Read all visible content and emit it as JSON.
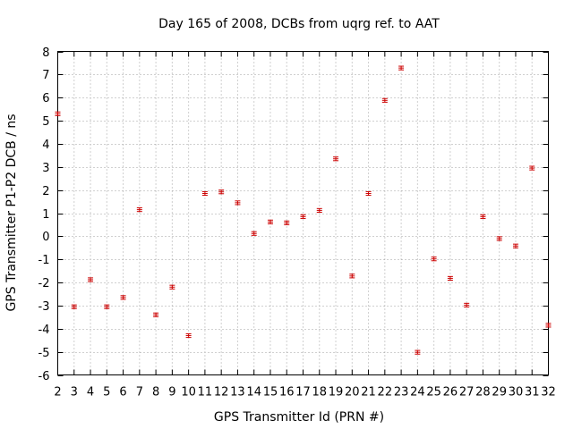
{
  "chart_data": {
    "type": "scatter",
    "title": "Day 165 of 2008, DCBs from uqrg ref. to AAT",
    "xlabel": "GPS Transmitter Id (PRN #)",
    "ylabel": "GPS Transmitter P1-P2 DCB / ns",
    "xlim": [
      2,
      32
    ],
    "ylim": [
      -6,
      8
    ],
    "grid": true,
    "y_ticks": [
      -6,
      -5,
      -4,
      -3,
      -2,
      -1,
      0,
      1,
      2,
      3,
      4,
      5,
      6,
      7,
      8
    ],
    "x_ticks": [
      2,
      3,
      4,
      5,
      6,
      7,
      8,
      9,
      10,
      11,
      12,
      13,
      14,
      15,
      16,
      17,
      18,
      19,
      20,
      21,
      22,
      23,
      24,
      25,
      26,
      27,
      28,
      29,
      30,
      31,
      32
    ],
    "x_tick_labels": [
      "2",
      "3",
      "4",
      "5",
      "6",
      "7",
      "8",
      "9",
      "10",
      "11",
      "12",
      "13",
      "14",
      "15",
      "16",
      "17",
      "18",
      "19",
      "20",
      "21",
      "22",
      "23",
      "24",
      "25",
      "26",
      "27",
      "28",
      "29",
      "30",
      "31",
      "32"
    ],
    "marker_color": "#cc0000",
    "series": [
      {
        "name": "DCB",
        "x": [
          2,
          3,
          4,
          5,
          6,
          7,
          8,
          9,
          10,
          11,
          12,
          13,
          14,
          15,
          16,
          17,
          18,
          19,
          20,
          21,
          22,
          23,
          24,
          25,
          26,
          27,
          28,
          29,
          30,
          31,
          32
        ],
        "y": [
          5.3,
          -3.05,
          -1.88,
          -3.05,
          -2.65,
          1.15,
          -3.4,
          -2.2,
          -4.3,
          1.85,
          1.92,
          1.45,
          0.12,
          0.62,
          0.58,
          0.85,
          1.12,
          3.35,
          -1.72,
          1.85,
          5.88,
          7.28,
          -5.02,
          -0.98,
          -1.82,
          -2.98,
          0.85,
          -0.1,
          -0.42,
          2.95,
          -3.85
        ],
        "err": [
          0.08,
          0.08,
          0.08,
          0.08,
          0.08,
          0.08,
          0.08,
          0.08,
          0.08,
          0.08,
          0.08,
          0.08,
          0.08,
          0.08,
          0.08,
          0.08,
          0.08,
          0.08,
          0.08,
          0.08,
          0.08,
          0.08,
          0.08,
          0.08,
          0.08,
          0.08,
          0.08,
          0.08,
          0.08,
          0.08,
          0.08
        ]
      }
    ]
  }
}
